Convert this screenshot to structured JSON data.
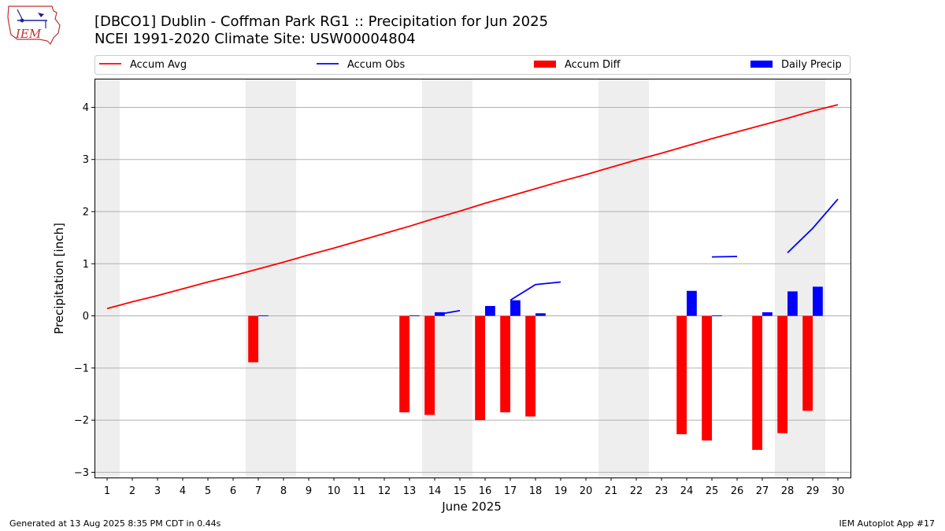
{
  "header": {
    "title_line1": "[DBCO1] Dublin - Coffman Park RG1 :: Precipitation for Jun 2025",
    "title_line2": "NCEI 1991-2020 Climate Site: USW00004804",
    "logo_text": "IEM"
  },
  "footer": {
    "generated": "Generated at 13 Aug 2025 8:35 PM CDT in 0.44s",
    "app": "IEM Autoplot App #17"
  },
  "chart_data": {
    "type": "bar",
    "xlabel": "June 2025",
    "ylabel": "Precipitation [inch]",
    "xlim": [
      0.5,
      30.5
    ],
    "ylim": [
      -3.1,
      4.55
    ],
    "yticks": [
      -3,
      -2,
      -1,
      0,
      1,
      2,
      3,
      4
    ],
    "ytick_labels": [
      "−3",
      "−2",
      "−1",
      "0",
      "1",
      "2",
      "3",
      "4"
    ],
    "grid": "horizontal",
    "legend_position": "top, above plot",
    "weekend_shading": [
      [
        0.5,
        1.5
      ],
      [
        6.5,
        8.5
      ],
      [
        13.5,
        15.5
      ],
      [
        20.5,
        22.5
      ],
      [
        27.5,
        29.5
      ]
    ],
    "colors": {
      "avg": "#ff0000",
      "obs": "#0000ff",
      "diff": "#ff0000",
      "daily": "#0000ff",
      "shade": "#eeeeee",
      "grid": "#b0b0b0"
    },
    "legend": [
      {
        "label": "Accum Avg",
        "kind": "line",
        "color": "#ff0000"
      },
      {
        "label": "Accum Obs",
        "kind": "line",
        "color": "#0000ff"
      },
      {
        "label": "Accum Diff",
        "kind": "bar",
        "color": "#ff0000"
      },
      {
        "label": "Daily Precip",
        "kind": "bar",
        "color": "#0000ff"
      }
    ],
    "days": [
      1,
      2,
      3,
      4,
      5,
      6,
      7,
      8,
      9,
      10,
      11,
      12,
      13,
      14,
      15,
      16,
      17,
      18,
      19,
      20,
      21,
      22,
      23,
      24,
      25,
      26,
      27,
      28,
      29,
      30
    ],
    "series": [
      {
        "name": "Accum Avg",
        "type": "line",
        "values": [
          0.14,
          0.27,
          0.39,
          0.52,
          0.65,
          0.77,
          0.9,
          1.03,
          1.17,
          1.3,
          1.44,
          1.58,
          1.72,
          1.87,
          2.01,
          2.16,
          2.3,
          2.44,
          2.58,
          2.71,
          2.85,
          2.99,
          3.12,
          3.26,
          3.4,
          3.53,
          3.66,
          3.79,
          3.93,
          4.05
        ]
      },
      {
        "name": "Accum Obs",
        "type": "line",
        "values": [
          null,
          null,
          null,
          null,
          null,
          null,
          null,
          null,
          null,
          null,
          null,
          null,
          null,
          0.02,
          0.1,
          null,
          0.3,
          0.6,
          0.65,
          null,
          null,
          null,
          null,
          null,
          1.13,
          1.14,
          null,
          1.21,
          1.68,
          2.24
        ]
      },
      {
        "name": "Accum Diff",
        "type": "bar",
        "values": [
          null,
          null,
          null,
          null,
          null,
          null,
          -0.89,
          null,
          null,
          null,
          null,
          null,
          -1.85,
          -1.9,
          null,
          -2.0,
          -1.85,
          -1.93,
          null,
          null,
          null,
          null,
          null,
          -2.27,
          -2.39,
          null,
          -2.57,
          -2.25,
          -1.82,
          null
        ]
      },
      {
        "name": "Daily Precip",
        "type": "bar",
        "values": [
          null,
          null,
          null,
          null,
          null,
          null,
          0.01,
          null,
          null,
          null,
          null,
          null,
          0.01,
          0.07,
          null,
          0.19,
          0.3,
          0.05,
          null,
          null,
          null,
          null,
          null,
          0.48,
          0.01,
          null,
          0.07,
          0.47,
          0.56,
          null
        ]
      }
    ]
  }
}
